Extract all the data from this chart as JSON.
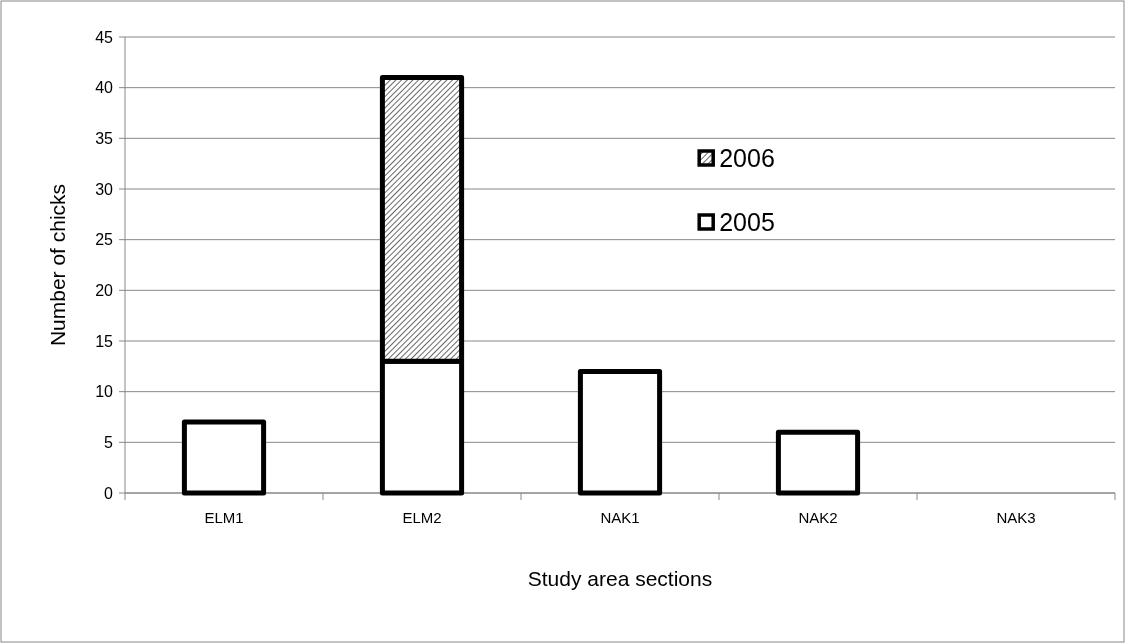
{
  "chart_data": {
    "type": "bar",
    "stacked": true,
    "xlabel": "Study area sections",
    "ylabel": "Number of chicks",
    "categories": [
      "ELM1",
      "ELM2",
      "NAK1",
      "NAK2",
      "NAK3"
    ],
    "series": [
      {
        "name": "2005",
        "color": "#ffffff",
        "values": [
          7,
          13,
          12,
          6,
          0
        ]
      },
      {
        "name": "2006",
        "color": "#000000",
        "values": [
          0,
          28,
          0,
          0,
          0
        ]
      }
    ],
    "ylim": [
      0,
      45
    ],
    "yticks": [
      0,
      5,
      10,
      15,
      20,
      25,
      30,
      35,
      40,
      45
    ],
    "grid": "y",
    "legend": "top right"
  }
}
